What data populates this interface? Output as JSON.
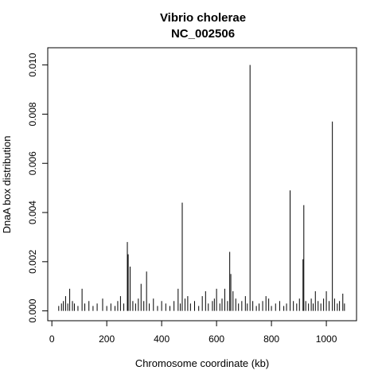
{
  "chart_data": {
    "type": "bar",
    "title": "Vibrio cholerae",
    "subtitle": "NC_002506",
    "xlabel": "Chromosome coordinate (kb)",
    "ylabel": "DnaA box distribution",
    "xlim": [
      -15,
      1110
    ],
    "ylim": [
      -0.0004,
      0.0107
    ],
    "x_ticks": [
      0,
      200,
      400,
      600,
      800,
      1000
    ],
    "y_ticks": [
      0.0,
      0.002,
      0.004,
      0.006,
      0.008,
      0.01
    ],
    "x_tick_labels": [
      "0",
      "200",
      "400",
      "600",
      "800",
      "1000"
    ],
    "y_tick_labels": [
      "0.000",
      "0.002",
      "0.004",
      "0.006",
      "0.008",
      "0.010"
    ],
    "grid": false,
    "legend": "none",
    "bar_color": "#000000",
    "major_peaks": [
      {
        "x": 50,
        "y": 0.0006
      },
      {
        "x": 65,
        "y": 0.0009
      },
      {
        "x": 110,
        "y": 0.0009
      },
      {
        "x": 250,
        "y": 0.0006
      },
      {
        "x": 275,
        "y": 0.0028
      },
      {
        "x": 278,
        "y": 0.0023
      },
      {
        "x": 285,
        "y": 0.0018
      },
      {
        "x": 325,
        "y": 0.0011
      },
      {
        "x": 345,
        "y": 0.0016
      },
      {
        "x": 460,
        "y": 0.0009
      },
      {
        "x": 475,
        "y": 0.0044
      },
      {
        "x": 560,
        "y": 0.0008
      },
      {
        "x": 600,
        "y": 0.0009
      },
      {
        "x": 630,
        "y": 0.0009
      },
      {
        "x": 648,
        "y": 0.0024
      },
      {
        "x": 652,
        "y": 0.0015
      },
      {
        "x": 660,
        "y": 0.0008
      },
      {
        "x": 722,
        "y": 0.01
      },
      {
        "x": 780,
        "y": 0.0006
      },
      {
        "x": 868,
        "y": 0.0049
      },
      {
        "x": 915,
        "y": 0.0021
      },
      {
        "x": 918,
        "y": 0.0043
      },
      {
        "x": 960,
        "y": 0.0008
      },
      {
        "x": 1000,
        "y": 0.0008
      },
      {
        "x": 1022,
        "y": 0.0077
      },
      {
        "x": 1060,
        "y": 0.0007
      }
    ],
    "baseline_bars": [
      {
        "x": 25,
        "y": 0.0002
      },
      {
        "x": 35,
        "y": 0.0003
      },
      {
        "x": 42,
        "y": 0.0004
      },
      {
        "x": 58,
        "y": 0.0003
      },
      {
        "x": 75,
        "y": 0.0004
      },
      {
        "x": 82,
        "y": 0.0003
      },
      {
        "x": 95,
        "y": 0.0002
      },
      {
        "x": 120,
        "y": 0.0003
      },
      {
        "x": 135,
        "y": 0.0004
      },
      {
        "x": 150,
        "y": 0.0002
      },
      {
        "x": 165,
        "y": 0.0003
      },
      {
        "x": 185,
        "y": 0.0005
      },
      {
        "x": 200,
        "y": 0.0002
      },
      {
        "x": 215,
        "y": 0.0003
      },
      {
        "x": 230,
        "y": 0.0002
      },
      {
        "x": 240,
        "y": 0.0004
      },
      {
        "x": 262,
        "y": 0.0003
      },
      {
        "x": 295,
        "y": 0.0004
      },
      {
        "x": 305,
        "y": 0.0003
      },
      {
        "x": 315,
        "y": 0.0005
      },
      {
        "x": 335,
        "y": 0.0004
      },
      {
        "x": 355,
        "y": 0.0003
      },
      {
        "x": 370,
        "y": 0.0005
      },
      {
        "x": 385,
        "y": 0.0002
      },
      {
        "x": 400,
        "y": 0.0004
      },
      {
        "x": 415,
        "y": 0.0003
      },
      {
        "x": 430,
        "y": 0.0002
      },
      {
        "x": 445,
        "y": 0.0004
      },
      {
        "x": 468,
        "y": 0.0003
      },
      {
        "x": 485,
        "y": 0.0005
      },
      {
        "x": 495,
        "y": 0.0006
      },
      {
        "x": 505,
        "y": 0.0003
      },
      {
        "x": 520,
        "y": 0.0004
      },
      {
        "x": 535,
        "y": 0.0002
      },
      {
        "x": 548,
        "y": 0.0006
      },
      {
        "x": 570,
        "y": 0.0003
      },
      {
        "x": 585,
        "y": 0.0004
      },
      {
        "x": 592,
        "y": 0.0005
      },
      {
        "x": 612,
        "y": 0.0003
      },
      {
        "x": 620,
        "y": 0.0005
      },
      {
        "x": 640,
        "y": 0.0004
      },
      {
        "x": 670,
        "y": 0.0005
      },
      {
        "x": 680,
        "y": 0.0003
      },
      {
        "x": 692,
        "y": 0.0004
      },
      {
        "x": 705,
        "y": 0.0006
      },
      {
        "x": 712,
        "y": 0.0003
      },
      {
        "x": 732,
        "y": 0.0004
      },
      {
        "x": 745,
        "y": 0.0002
      },
      {
        "x": 755,
        "y": 0.0003
      },
      {
        "x": 768,
        "y": 0.0004
      },
      {
        "x": 790,
        "y": 0.0005
      },
      {
        "x": 800,
        "y": 0.0002
      },
      {
        "x": 815,
        "y": 0.0003
      },
      {
        "x": 830,
        "y": 0.0004
      },
      {
        "x": 845,
        "y": 0.0002
      },
      {
        "x": 855,
        "y": 0.0003
      },
      {
        "x": 880,
        "y": 0.0004
      },
      {
        "x": 892,
        "y": 0.0003
      },
      {
        "x": 902,
        "y": 0.0005
      },
      {
        "x": 925,
        "y": 0.0004
      },
      {
        "x": 935,
        "y": 0.0003
      },
      {
        "x": 945,
        "y": 0.0005
      },
      {
        "x": 952,
        "y": 0.0003
      },
      {
        "x": 970,
        "y": 0.0004
      },
      {
        "x": 980,
        "y": 0.0003
      },
      {
        "x": 990,
        "y": 0.0005
      },
      {
        "x": 1010,
        "y": 0.0004
      },
      {
        "x": 1030,
        "y": 0.0005
      },
      {
        "x": 1040,
        "y": 0.0003
      },
      {
        "x": 1048,
        "y": 0.0004
      },
      {
        "x": 1066,
        "y": 0.0003
      }
    ]
  }
}
